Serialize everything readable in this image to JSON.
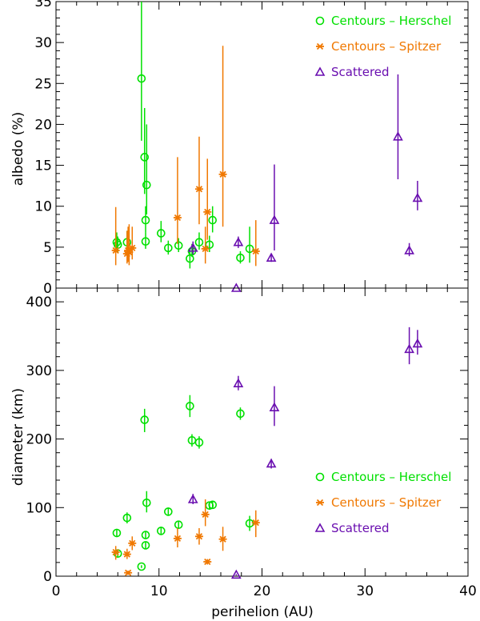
{
  "colors": {
    "herschel": "#00e000",
    "spitzer": "#f07800",
    "scattered": "#6a0fb0",
    "axis": "#000000"
  },
  "legend": {
    "herschel": "Centours – Herschel",
    "spitzer": "Centours – Spitzer",
    "scattered": "Scattered"
  },
  "chart_data": [
    {
      "type": "scatter",
      "panel": "top",
      "xlabel": "",
      "ylabel": "albedo (%)",
      "xlim": [
        0,
        40
      ],
      "ylim": [
        0,
        35
      ],
      "xticks": [
        0,
        10,
        20,
        30,
        40
      ],
      "yticks": [
        0,
        5,
        10,
        15,
        20,
        25,
        30,
        35
      ],
      "grid": false,
      "legend_position": "top-right",
      "series": [
        {
          "key": "herschel",
          "name": "Centours – Herschel",
          "marker": "circle",
          "points": [
            {
              "x": 5.9,
              "y": 5.6,
              "lo": 4.6,
              "hi": 6.8
            },
            {
              "x": 6.0,
              "y": 5.3,
              "lo": 4.4,
              "hi": 6.3
            },
            {
              "x": 6.9,
              "y": 5.6,
              "lo": 4.5,
              "hi": 7.0
            },
            {
              "x": 8.3,
              "y": 25.6,
              "lo": 18.0,
              "hi": 36.0
            },
            {
              "x": 8.6,
              "y": 16.0,
              "lo": 11.5,
              "hi": 22.0
            },
            {
              "x": 8.7,
              "y": 8.3,
              "lo": 6.8,
              "hi": 10.0
            },
            {
              "x": 8.7,
              "y": 5.7,
              "lo": 4.8,
              "hi": 6.8
            },
            {
              "x": 8.8,
              "y": 12.6,
              "lo": 9.0,
              "hi": 20.0
            },
            {
              "x": 10.2,
              "y": 6.7,
              "lo": 5.6,
              "hi": 8.2
            },
            {
              "x": 10.9,
              "y": 4.9,
              "lo": 4.1,
              "hi": 5.8
            },
            {
              "x": 11.9,
              "y": 5.2,
              "lo": 4.4,
              "hi": 6.1
            },
            {
              "x": 13.0,
              "y": 3.6,
              "lo": 2.4,
              "hi": 4.8
            },
            {
              "x": 13.2,
              "y": 4.5,
              "lo": 3.8,
              "hi": 5.4
            },
            {
              "x": 13.9,
              "y": 5.6,
              "lo": 4.7,
              "hi": 6.8
            },
            {
              "x": 14.9,
              "y": 5.3,
              "lo": 4.4,
              "hi": 6.4
            },
            {
              "x": 15.2,
              "y": 8.3,
              "lo": 6.8,
              "hi": 10.0
            },
            {
              "x": 17.9,
              "y": 3.7,
              "lo": 3.0,
              "hi": 4.5
            },
            {
              "x": 18.8,
              "y": 4.8,
              "lo": 3.1,
              "hi": 7.5
            }
          ]
        },
        {
          "key": "spitzer",
          "name": "Centours – Spitzer",
          "marker": "asterisk",
          "points": [
            {
              "x": 5.8,
              "y": 4.6,
              "lo": 2.8,
              "hi": 9.9
            },
            {
              "x": 6.9,
              "y": 4.2,
              "lo": 3.0,
              "hi": 7.0
            },
            {
              "x": 7.0,
              "y": 4.6,
              "lo": 3.2,
              "hi": 7.5
            },
            {
              "x": 7.1,
              "y": 4.4,
              "lo": 2.8,
              "hi": 7.8
            },
            {
              "x": 7.4,
              "y": 4.9,
              "lo": 3.5,
              "hi": 7.5
            },
            {
              "x": 11.8,
              "y": 8.6,
              "lo": 5.4,
              "hi": 16.0
            },
            {
              "x": 13.9,
              "y": 12.1,
              "lo": 7.8,
              "hi": 18.5
            },
            {
              "x": 14.5,
              "y": 4.8,
              "lo": 3.0,
              "hi": 7.5
            },
            {
              "x": 14.7,
              "y": 9.3,
              "lo": 5.9,
              "hi": 15.8
            },
            {
              "x": 16.2,
              "y": 13.9,
              "lo": 7.5,
              "hi": 29.6
            },
            {
              "x": 19.4,
              "y": 4.5,
              "lo": 2.7,
              "hi": 8.3
            }
          ]
        },
        {
          "key": "scattered",
          "name": "Scattered",
          "marker": "triangle",
          "points": [
            {
              "x": 13.3,
              "y": 4.9,
              "lo": 4.1,
              "hi": 5.7
            },
            {
              "x": 17.5,
              "y": 0.0,
              "lo": 0.0,
              "hi": 0.0
            },
            {
              "x": 17.7,
              "y": 5.6,
              "lo": 4.9,
              "hi": 6.3
            },
            {
              "x": 20.9,
              "y": 3.7,
              "lo": 3.2,
              "hi": 4.2
            },
            {
              "x": 21.2,
              "y": 8.3,
              "lo": 4.6,
              "hi": 15.1
            },
            {
              "x": 33.2,
              "y": 18.5,
              "lo": 13.3,
              "hi": 26.1
            },
            {
              "x": 34.3,
              "y": 4.6,
              "lo": 3.9,
              "hi": 5.5
            },
            {
              "x": 35.1,
              "y": 11.0,
              "lo": 9.5,
              "hi": 13.1
            }
          ]
        }
      ]
    },
    {
      "type": "scatter",
      "panel": "bottom",
      "xlabel": "perihelion (AU)",
      "ylabel": "diameter (km)",
      "xlim": [
        0,
        40
      ],
      "ylim": [
        0,
        420
      ],
      "xticks": [
        0,
        10,
        20,
        30,
        40
      ],
      "yticks": [
        0,
        100,
        200,
        300,
        400
      ],
      "grid": false,
      "legend_position": "lower-right",
      "series": [
        {
          "key": "herschel",
          "name": "Centours – Herschel",
          "marker": "circle",
          "points": [
            {
              "x": 5.9,
              "y": 63,
              "lo": 57,
              "hi": 69
            },
            {
              "x": 6.0,
              "y": 33,
              "lo": 28,
              "hi": 38
            },
            {
              "x": 6.9,
              "y": 85,
              "lo": 77,
              "hi": 93
            },
            {
              "x": 8.3,
              "y": 14,
              "lo": 12,
              "hi": 16
            },
            {
              "x": 8.6,
              "y": 228,
              "lo": 210,
              "hi": 244
            },
            {
              "x": 8.7,
              "y": 60,
              "lo": 54,
              "hi": 66
            },
            {
              "x": 8.7,
              "y": 45,
              "lo": 40,
              "hi": 50
            },
            {
              "x": 8.8,
              "y": 107,
              "lo": 93,
              "hi": 124
            },
            {
              "x": 10.2,
              "y": 66,
              "lo": 61,
              "hi": 72
            },
            {
              "x": 10.9,
              "y": 94,
              "lo": 88,
              "hi": 100
            },
            {
              "x": 11.9,
              "y": 75,
              "lo": 69,
              "hi": 81
            },
            {
              "x": 13.0,
              "y": 248,
              "lo": 232,
              "hi": 264
            },
            {
              "x": 13.2,
              "y": 198,
              "lo": 189,
              "hi": 207
            },
            {
              "x": 13.9,
              "y": 195,
              "lo": 186,
              "hi": 204
            },
            {
              "x": 14.9,
              "y": 103,
              "lo": 97,
              "hi": 109
            },
            {
              "x": 15.2,
              "y": 104,
              "lo": 98,
              "hi": 110
            },
            {
              "x": 17.9,
              "y": 237,
              "lo": 228,
              "hi": 246
            },
            {
              "x": 18.8,
              "y": 77,
              "lo": 66,
              "hi": 88
            }
          ]
        },
        {
          "key": "spitzer",
          "name": "Centours – Spitzer",
          "marker": "asterisk",
          "points": [
            {
              "x": 5.8,
              "y": 35,
              "lo": 24,
              "hi": 44
            },
            {
              "x": 6.9,
              "y": 32,
              "lo": 25,
              "hi": 40
            },
            {
              "x": 7.0,
              "y": 5,
              "lo": 4,
              "hi": 7
            },
            {
              "x": 7.4,
              "y": 48,
              "lo": 38,
              "hi": 58
            },
            {
              "x": 11.8,
              "y": 55,
              "lo": 42,
              "hi": 70
            },
            {
              "x": 13.9,
              "y": 58,
              "lo": 46,
              "hi": 70
            },
            {
              "x": 14.5,
              "y": 90,
              "lo": 73,
              "hi": 112
            },
            {
              "x": 14.7,
              "y": 21,
              "lo": 17,
              "hi": 25
            },
            {
              "x": 16.2,
              "y": 54,
              "lo": 37,
              "hi": 72
            },
            {
              "x": 19.4,
              "y": 78,
              "lo": 57,
              "hi": 96
            }
          ]
        },
        {
          "key": "scattered",
          "name": "Scattered",
          "marker": "triangle",
          "points": [
            {
              "x": 13.3,
              "y": 112,
              "lo": 105,
              "hi": 120
            },
            {
              "x": 17.5,
              "y": 2,
              "lo": 1,
              "hi": 3
            },
            {
              "x": 17.7,
              "y": 281,
              "lo": 271,
              "hi": 292
            },
            {
              "x": 20.9,
              "y": 164,
              "lo": 157,
              "hi": 171
            },
            {
              "x": 21.2,
              "y": 246,
              "lo": 219,
              "hi": 277
            },
            {
              "x": 34.3,
              "y": 331,
              "lo": 309,
              "hi": 363
            },
            {
              "x": 35.1,
              "y": 339,
              "lo": 323,
              "hi": 359
            }
          ]
        }
      ]
    }
  ]
}
